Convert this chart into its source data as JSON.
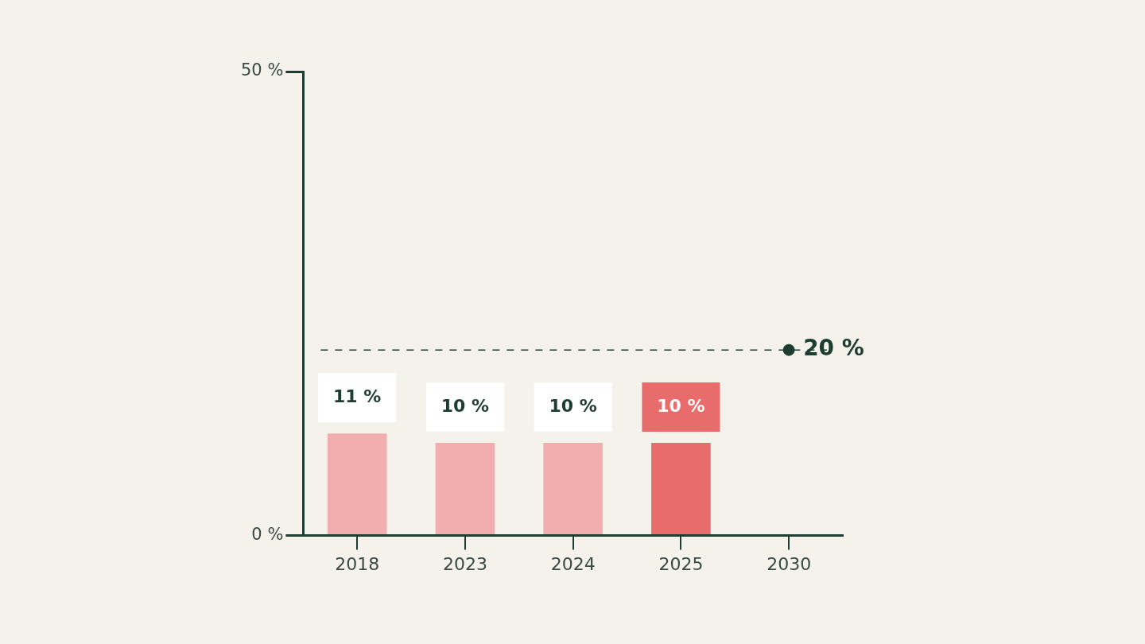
{
  "chart_data": {
    "type": "bar",
    "categories": [
      "2018",
      "2023",
      "2024",
      "2025",
      "2030"
    ],
    "series": [
      {
        "colors": [
          "#f2aeae",
          "#f2aeae",
          "#f2aeae",
          "#e86c6c",
          null
        ],
        "values": [
          11,
          10,
          10,
          10,
          null
        ],
        "value_labels": [
          "11 %",
          "10 %",
          "10 %",
          "10 %",
          null
        ]
      },
      {
        "type": "scatter",
        "color": "#1e3d32",
        "marker": "circle",
        "values": [
          null,
          null,
          null,
          null,
          20
        ],
        "value_labels": [
          null,
          null,
          null,
          null,
          "20 %"
        ]
      }
    ],
    "ylim": [
      0,
      50
    ],
    "yticks": [
      {
        "value": 0,
        "label": "0 %"
      },
      {
        "value": 50,
        "label": "50 %"
      }
    ],
    "ref_lines": [
      {
        "axis": "y",
        "value": 20,
        "color": "#1e3d32",
        "line_style": "dashed"
      }
    ],
    "grid": false,
    "legend": false
  }
}
